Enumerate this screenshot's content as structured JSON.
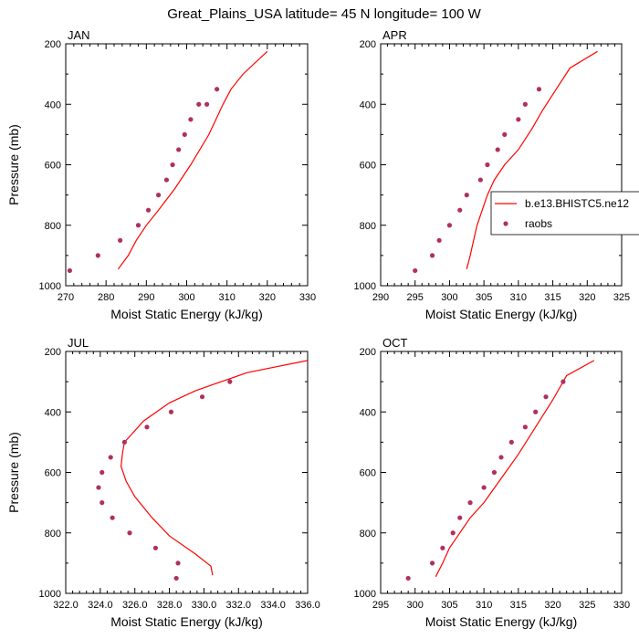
{
  "figure": {
    "title": "Great_Plains_USA  latitude= 45 N longitude= 100 W"
  },
  "colors": {
    "model_line": "#ff0000",
    "obs_marker": "#b03060",
    "axis": "#000000"
  },
  "chart_data": [
    {
      "type": "line",
      "panel_label": "JAN",
      "xlabel": "Moist Static Energy (kJ/kg)",
      "ylabel": "Pressure (mb)",
      "xlim": [
        270,
        330
      ],
      "ylim": [
        1000,
        200
      ],
      "xticks": [
        270,
        280,
        290,
        300,
        310,
        320,
        330
      ],
      "xtick_labels": [
        "270",
        "280",
        "290",
        "300",
        "310",
        "320",
        "330"
      ],
      "yticks": [
        1000,
        800,
        600,
        400,
        200
      ],
      "ytick_labels": [
        "1000",
        "800",
        "600",
        "400",
        "200"
      ],
      "series": [
        {
          "name": "b.e13.BHISTC5.ne12",
          "kind": "line",
          "x": [
            283,
            285.5,
            287.5,
            290,
            293,
            297,
            301,
            305.5,
            309,
            311,
            314,
            320
          ],
          "y": [
            945,
            900,
            850,
            800,
            750,
            680,
            600,
            500,
            400,
            350,
            300,
            225
          ]
        },
        {
          "name": "raobs",
          "kind": "scatter",
          "x": [
            271,
            278,
            283.5,
            288,
            290.5,
            293,
            295,
            296.5,
            298,
            299.5,
            301,
            303,
            305,
            307.5
          ],
          "y": [
            950,
            900,
            850,
            800,
            750,
            700,
            650,
            600,
            550,
            500,
            450,
            400,
            400,
            350
          ]
        }
      ]
    },
    {
      "type": "line",
      "panel_label": "APR",
      "xlabel": "Moist Static Energy (kJ/kg)",
      "ylabel": "",
      "xlim": [
        290,
        325
      ],
      "ylim": [
        1000,
        200
      ],
      "xticks": [
        290,
        295,
        300,
        305,
        310,
        315,
        320,
        325
      ],
      "xtick_labels": [
        "290",
        "295",
        "300",
        "305",
        "310",
        "315",
        "320",
        "325"
      ],
      "yticks": [
        1000,
        800,
        600,
        400,
        200
      ],
      "ytick_labels": [
        "1000",
        "800",
        "600",
        "400",
        "200"
      ],
      "series": [
        {
          "name": "b.e13.BHISTC5.ne12",
          "kind": "line",
          "x": [
            302.5,
            303,
            303.5,
            304,
            305.5,
            306.5,
            308,
            310,
            312,
            313.5,
            315.5,
            317.5,
            321.5
          ],
          "y": [
            945,
            900,
            850,
            800,
            700,
            650,
            600,
            550,
            480,
            420,
            350,
            280,
            225
          ]
        },
        {
          "name": "raobs",
          "kind": "scatter",
          "x": [
            295,
            297.5,
            298.5,
            300,
            301.5,
            302.5,
            304.5,
            305.5,
            307,
            308,
            310,
            311,
            313
          ],
          "y": [
            950,
            900,
            850,
            800,
            750,
            700,
            650,
            600,
            550,
            500,
            450,
            400,
            350
          ]
        }
      ],
      "legend": {
        "placement": "right",
        "entries": [
          {
            "label": "b.e13.BHISTC5.ne12",
            "kind": "line"
          },
          {
            "label": "raobs",
            "kind": "marker"
          }
        ]
      }
    },
    {
      "type": "line",
      "panel_label": "JUL",
      "xlabel": "Moist Static Energy (kJ/kg)",
      "ylabel": "Pressure (mb)",
      "xlim": [
        322,
        336
      ],
      "ylim": [
        1000,
        200
      ],
      "xticks": [
        322,
        324,
        326,
        328,
        330,
        332,
        334,
        336
      ],
      "xtick_labels": [
        "322.0",
        "324.0",
        "326.0",
        "328.0",
        "330.0",
        "332.0",
        "334.0",
        "336.0"
      ],
      "yticks": [
        1000,
        800,
        600,
        400,
        200
      ],
      "ytick_labels": [
        "1000",
        "800",
        "600",
        "400",
        "200"
      ],
      "series": [
        {
          "name": "b.e13.BHISTC5.ne12",
          "kind": "line",
          "x": [
            330.5,
            330.4,
            329.5,
            328,
            327,
            326,
            325.5,
            325.2,
            325.3,
            325.4,
            326.5,
            328,
            329.5,
            331,
            332.5,
            336
          ],
          "y": [
            940,
            910,
            870,
            810,
            750,
            680,
            630,
            580,
            530,
            500,
            430,
            370,
            330,
            300,
            270,
            230
          ]
        },
        {
          "name": "raobs",
          "kind": "scatter",
          "x": [
            328.4,
            328.5,
            327.2,
            325.7,
            324.7,
            324.1,
            323.9,
            324.1,
            324.6,
            325.4,
            326.7,
            328.1,
            329.9,
            331.5
          ],
          "y": [
            950,
            900,
            850,
            800,
            750,
            700,
            650,
            600,
            550,
            500,
            450,
            400,
            350,
            300
          ]
        }
      ]
    },
    {
      "type": "line",
      "panel_label": "OCT",
      "xlabel": "Moist Static Energy (kJ/kg)",
      "ylabel": "",
      "xlim": [
        295,
        330
      ],
      "ylim": [
        1000,
        200
      ],
      "xticks": [
        295,
        300,
        305,
        310,
        315,
        320,
        325,
        330
      ],
      "xtick_labels": [
        "295",
        "300",
        "305",
        "310",
        "315",
        "320",
        "325",
        "330"
      ],
      "yticks": [
        1000,
        800,
        600,
        400,
        200
      ],
      "ytick_labels": [
        "1000",
        "800",
        "600",
        "400",
        "200"
      ],
      "series": [
        {
          "name": "b.e13.BHISTC5.ne12",
          "kind": "line",
          "x": [
            303,
            304,
            305,
            306.5,
            308,
            310,
            312.5,
            315,
            317.5,
            320,
            322,
            326
          ],
          "y": [
            945,
            900,
            850,
            800,
            750,
            700,
            620,
            540,
            450,
            360,
            280,
            230
          ]
        },
        {
          "name": "raobs",
          "kind": "scatter",
          "x": [
            299,
            302.5,
            304,
            305.5,
            306.5,
            308,
            310,
            311.5,
            312.5,
            314,
            316,
            317.5,
            319,
            321.5
          ],
          "y": [
            950,
            900,
            850,
            800,
            750,
            700,
            650,
            600,
            550,
            500,
            450,
            400,
            350,
            300
          ]
        }
      ]
    }
  ]
}
